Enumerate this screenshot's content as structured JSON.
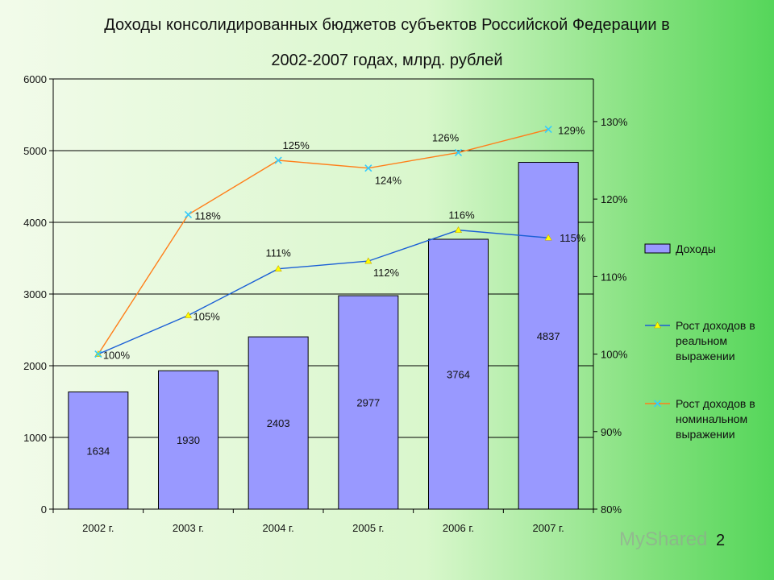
{
  "title_line1": "Доходы консолидированных бюджетов субъектов Российской Федерации в",
  "title_line2": "2002-2007 годах, млрд. рублей",
  "page_number": "2",
  "watermark": "MyShared",
  "chart_data": {
    "type": "bar",
    "categories": [
      "2002 г.",
      "2003 г.",
      "2004 г.",
      "2005 г.",
      "2006 г.",
      "2007 г."
    ],
    "series": [
      {
        "name": "Доходы",
        "type": "bar",
        "axis": "left",
        "values": [
          1634,
          1930,
          2403,
          2977,
          3764,
          4837
        ],
        "color": "#9999ff"
      },
      {
        "name": "Рост доходов в реальном выражении",
        "type": "line",
        "axis": "right",
        "values": [
          100,
          105,
          111,
          112,
          116,
          115
        ],
        "labels": [
          "100%",
          "105%",
          "111%",
          "112%",
          "116%",
          "115%"
        ],
        "color": "#1a5fd6",
        "marker_color": "#ffff00"
      },
      {
        "name": "Рост доходов в номинальном выражении",
        "type": "line",
        "axis": "right",
        "values": [
          100,
          118,
          125,
          124,
          126,
          129
        ],
        "labels": [
          "100%",
          "118%",
          "125%",
          "124%",
          "126%",
          "129%"
        ],
        "color": "#ff7f1a",
        "marker_color": "#33ccff"
      }
    ],
    "left_axis": {
      "ylim": [
        0,
        6000
      ],
      "ticks": [
        "0",
        "1000",
        "2000",
        "3000",
        "4000",
        "5000",
        "6000"
      ]
    },
    "right_axis": {
      "ylim": [
        80,
        135.5
      ],
      "ticks": [
        "80%",
        "90%",
        "100%",
        "110%",
        "120%",
        "130%"
      ]
    },
    "legend_position": "right",
    "grid": true
  }
}
